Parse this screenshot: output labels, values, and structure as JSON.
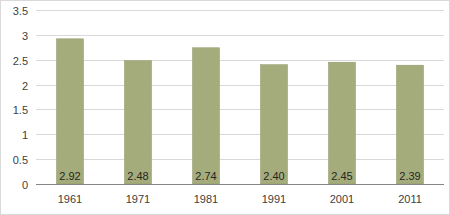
{
  "chart_data": {
    "type": "bar",
    "categories": [
      "1961",
      "1971",
      "1981",
      "1991",
      "2001",
      "2011"
    ],
    "values": [
      2.92,
      2.48,
      2.74,
      2.4,
      2.45,
      2.39
    ],
    "value_labels": [
      "2.92",
      "2.48",
      "2.74",
      "2.40",
      "2.45",
      "2.39"
    ],
    "color": "#a5ac7b",
    "ylim": [
      0,
      3.5
    ],
    "yticks": [
      0,
      0.5,
      1,
      1.5,
      2,
      2.5,
      3,
      3.5
    ],
    "grid": true,
    "data_labels": true
  }
}
